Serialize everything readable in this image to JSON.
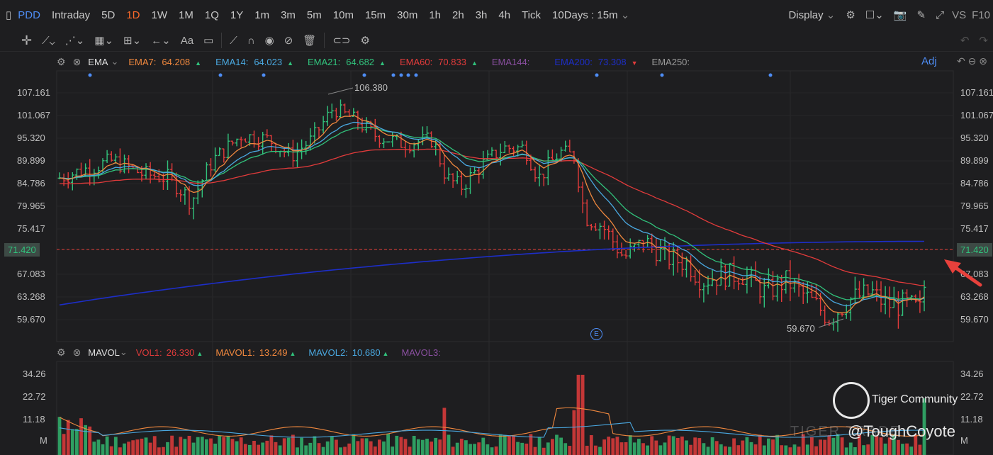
{
  "toolbar": {
    "symbol": "PDD",
    "periods": [
      "Intraday",
      "5D",
      "1D",
      "1W",
      "1M",
      "1Q",
      "1Y",
      "1m",
      "3m",
      "5m",
      "10m",
      "15m",
      "30m",
      "1h",
      "2h",
      "3h",
      "4h",
      "Tick"
    ],
    "active_period": "1D",
    "range_select": "10Days : 15m",
    "display_label": "Display",
    "vs_label": "VS",
    "f10_label": "F10"
  },
  "drawing_tools": {
    "text_tool_label": "Aa"
  },
  "ema_legend": {
    "name": "EMA",
    "items": [
      {
        "label": "EMA7:",
        "value": "64.208",
        "arrow": "▲",
        "color": "#f0883e",
        "arrow_color": "#31c27c"
      },
      {
        "label": "EMA14:",
        "value": "64.023",
        "arrow": "▲",
        "color": "#4aa8e0",
        "arrow_color": "#31c27c"
      },
      {
        "label": "EMA21:",
        "value": "64.682",
        "arrow": "▲",
        "color": "#31c27c",
        "arrow_color": "#31c27c"
      },
      {
        "label": "EMA60:",
        "value": "70.833",
        "arrow": "▲",
        "color": "#e23b3b",
        "arrow_color": "#31c27c"
      },
      {
        "label": "EMA144:",
        "value": "",
        "arrow": "",
        "color": "#8a4fa0",
        "arrow_color": "#31c27c"
      },
      {
        "label": "EMA200:",
        "value": "73.308",
        "arrow": "▼",
        "color": "#1d2ec8",
        "arrow_color": "#e23b3b"
      },
      {
        "label": "EMA250:",
        "value": "",
        "arrow": "",
        "color": "#9a9a9a",
        "arrow_color": "#31c27c"
      }
    ],
    "adj_label": "Adj"
  },
  "price_axis": {
    "ticks": [
      "107.161",
      "101.067",
      "95.320",
      "89.899",
      "84.786",
      "79.965",
      "75.417",
      "71.420",
      "67.083",
      "63.268",
      "59.670"
    ],
    "tick_values": [
      107.161,
      101.067,
      95.32,
      89.899,
      84.786,
      79.965,
      75.417,
      71.42,
      67.083,
      63.268,
      59.67
    ],
    "current_price": "71.420",
    "high_label": "106.380",
    "low_label": "59.670"
  },
  "volume_legend": {
    "name": "MAVOL",
    "items": [
      {
        "label": "VOL1:",
        "value": "26.330",
        "arrow": "▲",
        "color": "#e23b3b"
      },
      {
        "label": "MAVOL1:",
        "value": "13.249",
        "arrow": "▲",
        "color": "#f0883e"
      },
      {
        "label": "MAVOL2:",
        "value": "10.680",
        "arrow": "▲",
        "color": "#4aa8e0"
      },
      {
        "label": "MAVOL3:",
        "value": "",
        "arrow": "",
        "color": "#8a4fa0"
      }
    ]
  },
  "volume_axis": {
    "ticks": [
      "34.26",
      "22.72",
      "11.18",
      "M"
    ],
    "tick_values": [
      34.26,
      22.72,
      11.18
    ]
  },
  "event_marker": "E",
  "watermark": {
    "community": "Tiger Community",
    "user": "@ToughCoyote",
    "brand": "TIGER TRADE"
  },
  "colors": {
    "up": "#31c27c",
    "down": "#e23b3b",
    "accent": "#4e8df5",
    "active_period": "#ff6a2a",
    "ema7": "#f0883e",
    "ema14": "#4aa8e0",
    "ema21": "#31c27c",
    "ema60": "#e23b3b",
    "ema200": "#1d2ec8"
  },
  "icons": [
    "crosshair-icon",
    "line-tool-icon",
    "pattern-icon",
    "fib-icon",
    "measure-icon",
    "arrow-tool-icon",
    "text-tool-icon",
    "comment-icon",
    "pencil-icon",
    "magnet-icon",
    "eye-icon",
    "hide-icon",
    "trash-icon",
    "link-icon",
    "settings-icon",
    "gear-icon",
    "layout-icon",
    "camera-icon",
    "edit-icon",
    "fullscreen-icon",
    "undo-icon",
    "redo-icon",
    "close-icon"
  ]
}
